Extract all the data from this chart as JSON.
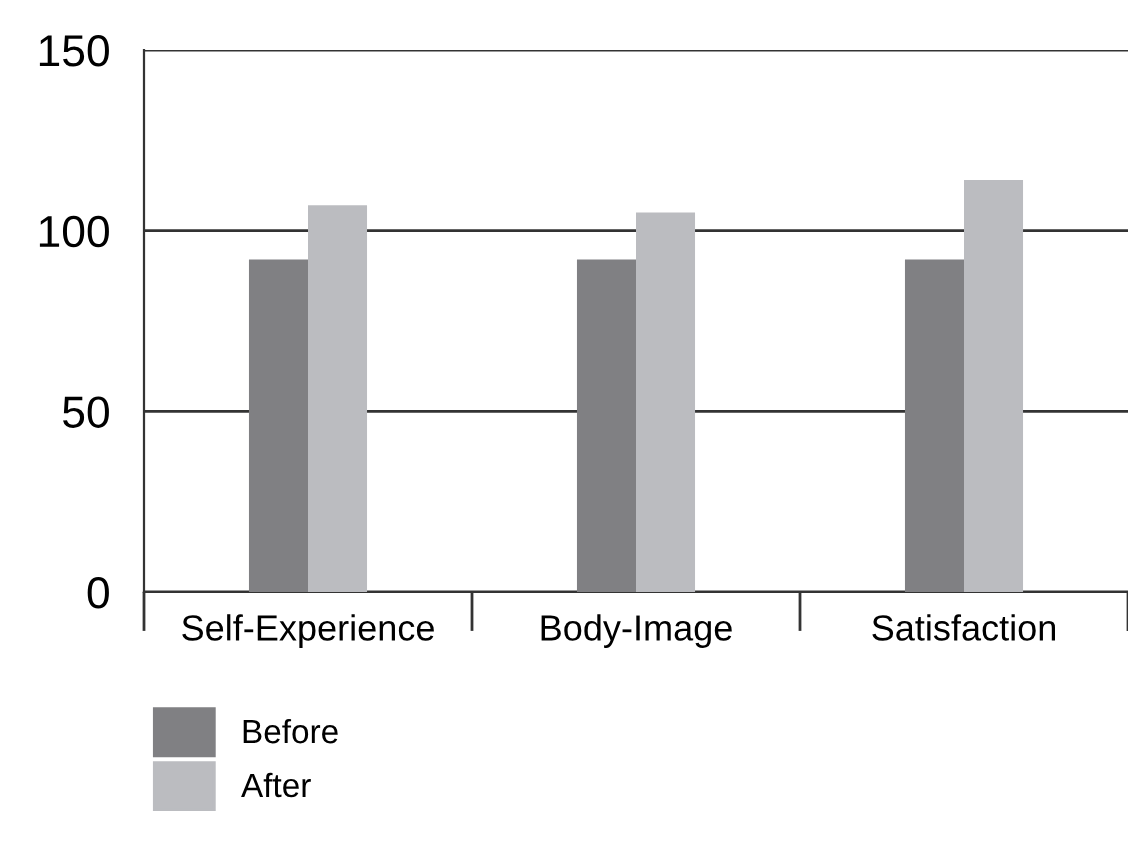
{
  "chart_data": {
    "type": "bar",
    "categories": [
      "Self-Experience",
      "Body-Image",
      "Satisfaction"
    ],
    "series": [
      {
        "name": "Before",
        "color": "#808083",
        "values": [
          92,
          92,
          92
        ]
      },
      {
        "name": "After",
        "color": "#bbbcc0",
        "values": [
          107,
          105,
          114
        ]
      }
    ],
    "ylim": [
      0,
      150
    ],
    "yticks": [
      0,
      50,
      100,
      150
    ],
    "grid": "y",
    "legend": "bottom left"
  }
}
